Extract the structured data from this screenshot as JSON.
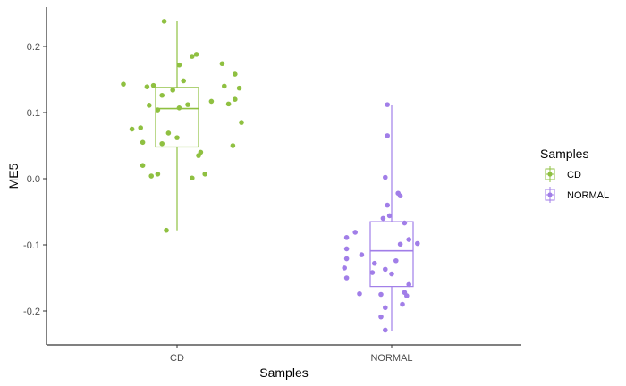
{
  "chart_data": {
    "type": "boxplot",
    "xlabel": "Samples",
    "ylabel": "ME5",
    "categories": [
      "CD",
      "NORMAL"
    ],
    "ylim": [
      -0.25,
      0.26
    ],
    "yticks": [
      -0.2,
      -0.1,
      0.0,
      0.1,
      0.2
    ],
    "ytick_labels": [
      "-0.2",
      "-0.1",
      "0.0",
      "0.1",
      "0.2"
    ],
    "grid": false,
    "legend": {
      "title": "Samples",
      "position": "right",
      "entries": [
        "CD",
        "NORMAL"
      ]
    },
    "colors": {
      "CD": "#8fc041",
      "NORMAL": "#a17ee8"
    },
    "boxes": [
      {
        "group": "CD",
        "min": -0.078,
        "q1": 0.048,
        "median": 0.106,
        "q3": 0.138,
        "max": 0.238
      },
      {
        "group": "NORMAL",
        "min": -0.23,
        "q1": -0.163,
        "median": -0.109,
        "q3": -0.065,
        "max": 0.112
      }
    ],
    "points": {
      "CD": [
        {
          "x": 0.94,
          "y": 0.238
        },
        {
          "x": 1.09,
          "y": 0.188
        },
        {
          "x": 1.07,
          "y": 0.185
        },
        {
          "x": 1.21,
          "y": 0.174
        },
        {
          "x": 1.01,
          "y": 0.172
        },
        {
          "x": 1.27,
          "y": 0.158
        },
        {
          "x": 1.03,
          "y": 0.148
        },
        {
          "x": 0.75,
          "y": 0.143
        },
        {
          "x": 0.89,
          "y": 0.141
        },
        {
          "x": 1.22,
          "y": 0.14
        },
        {
          "x": 0.86,
          "y": 0.139
        },
        {
          "x": 1.29,
          "y": 0.137
        },
        {
          "x": 0.98,
          "y": 0.134
        },
        {
          "x": 0.93,
          "y": 0.126
        },
        {
          "x": 1.27,
          "y": 0.12
        },
        {
          "x": 1.24,
          "y": 0.113
        },
        {
          "x": 1.16,
          "y": 0.117
        },
        {
          "x": 1.05,
          "y": 0.112
        },
        {
          "x": 0.87,
          "y": 0.111
        },
        {
          "x": 1.01,
          "y": 0.107
        },
        {
          "x": 0.91,
          "y": 0.104
        },
        {
          "x": 1.3,
          "y": 0.085
        },
        {
          "x": 0.83,
          "y": 0.077
        },
        {
          "x": 0.79,
          "y": 0.075
        },
        {
          "x": 0.96,
          "y": 0.069
        },
        {
          "x": 1.0,
          "y": 0.062
        },
        {
          "x": 0.84,
          "y": 0.055
        },
        {
          "x": 0.93,
          "y": 0.053
        },
        {
          "x": 1.26,
          "y": 0.05
        },
        {
          "x": 1.11,
          "y": 0.04
        },
        {
          "x": 1.1,
          "y": 0.035
        },
        {
          "x": 0.84,
          "y": 0.02
        },
        {
          "x": 0.91,
          "y": 0.007
        },
        {
          "x": 0.88,
          "y": 0.004
        },
        {
          "x": 1.13,
          "y": 0.007
        },
        {
          "x": 1.07,
          "y": 0.001
        },
        {
          "x": 0.95,
          "y": -0.078
        }
      ],
      "NORMAL": [
        {
          "x": 1.98,
          "y": 0.112
        },
        {
          "x": 1.98,
          "y": 0.065
        },
        {
          "x": 1.97,
          "y": 0.002
        },
        {
          "x": 2.03,
          "y": -0.022
        },
        {
          "x": 2.04,
          "y": -0.026
        },
        {
          "x": 1.98,
          "y": -0.04
        },
        {
          "x": 1.99,
          "y": -0.056
        },
        {
          "x": 1.96,
          "y": -0.06
        },
        {
          "x": 2.06,
          "y": -0.067
        },
        {
          "x": 1.83,
          "y": -0.081
        },
        {
          "x": 1.79,
          "y": -0.089
        },
        {
          "x": 2.08,
          "y": -0.092
        },
        {
          "x": 2.12,
          "y": -0.098
        },
        {
          "x": 2.04,
          "y": -0.099
        },
        {
          "x": 1.79,
          "y": -0.106
        },
        {
          "x": 1.86,
          "y": -0.115
        },
        {
          "x": 1.79,
          "y": -0.121
        },
        {
          "x": 2.02,
          "y": -0.124
        },
        {
          "x": 1.92,
          "y": -0.128
        },
        {
          "x": 1.78,
          "y": -0.135
        },
        {
          "x": 1.97,
          "y": -0.137
        },
        {
          "x": 1.91,
          "y": -0.142
        },
        {
          "x": 2.0,
          "y": -0.144
        },
        {
          "x": 1.79,
          "y": -0.15
        },
        {
          "x": 2.08,
          "y": -0.16
        },
        {
          "x": 2.06,
          "y": -0.172
        },
        {
          "x": 1.85,
          "y": -0.174
        },
        {
          "x": 1.95,
          "y": -0.175
        },
        {
          "x": 2.07,
          "y": -0.177
        },
        {
          "x": 2.05,
          "y": -0.19
        },
        {
          "x": 1.97,
          "y": -0.195
        },
        {
          "x": 1.95,
          "y": -0.209
        },
        {
          "x": 1.97,
          "y": -0.229
        }
      ]
    }
  }
}
